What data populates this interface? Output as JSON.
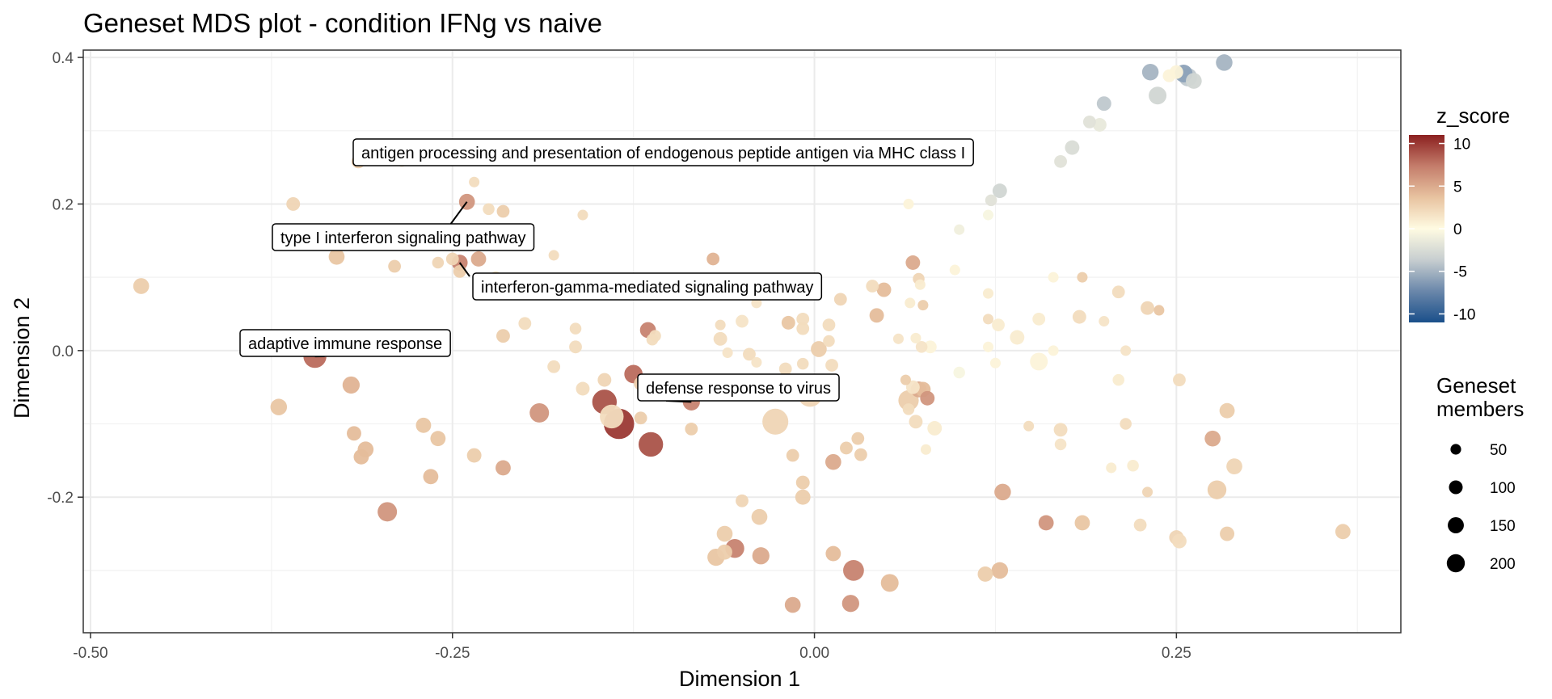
{
  "chart_data": {
    "type": "scatter",
    "title": "Geneset MDS plot - condition IFNg vs naive",
    "xlabel": "Dimension 1",
    "ylabel": "Dimension 2",
    "xlim": [
      -0.505,
      0.405
    ],
    "ylim": [
      -0.385,
      0.41
    ],
    "x_ticks": [
      -0.5,
      -0.25,
      0.0,
      0.25
    ],
    "x_tick_labels": [
      "-0.50",
      "-0.25",
      "0.00",
      "0.25"
    ],
    "y_ticks": [
      -0.2,
      0.0,
      0.2,
      0.4
    ],
    "y_tick_labels": [
      "-0.2",
      "0.0",
      "0.2",
      "0.4"
    ],
    "grid": true,
    "color_legend": {
      "title": "z_score",
      "ticks": [
        10,
        5,
        0,
        -5,
        -10
      ],
      "tick_labels": [
        "10",
        "5",
        "0",
        "-5",
        "-10"
      ],
      "range": [
        -11,
        11
      ],
      "colors": [
        "#1a4f8a",
        "#6a87aa",
        "#c7ced0",
        "#fffbe2",
        "#e8c3a0",
        "#c47d6b",
        "#8b2020"
      ]
    },
    "size_legend": {
      "title_lines": [
        "Geneset",
        "members"
      ],
      "values": [
        50,
        100,
        150,
        200
      ],
      "labels": [
        "50",
        "100",
        "150",
        "200"
      ]
    },
    "legend_position": "right",
    "points": [
      {
        "x": -0.465,
        "y": 0.088,
        "z": 3,
        "size": 40
      },
      {
        "x": -0.345,
        "y": -0.008,
        "z": 8,
        "size": 110
      },
      {
        "x": -0.37,
        "y": -0.077,
        "z": 3.5,
        "size": 45
      },
      {
        "x": -0.33,
        "y": 0.128,
        "z": 3.5,
        "size": 40
      },
      {
        "x": -0.36,
        "y": 0.2,
        "z": 2.5,
        "size": 25
      },
      {
        "x": -0.315,
        "y": 0.258,
        "z": 3,
        "size": 25
      },
      {
        "x": -0.285,
        "y": 0.258,
        "z": 2,
        "size": 10
      },
      {
        "x": -0.24,
        "y": 0.203,
        "z": 6,
        "size": 40
      },
      {
        "x": -0.235,
        "y": 0.23,
        "z": 2,
        "size": 10
      },
      {
        "x": -0.225,
        "y": 0.193,
        "z": 2,
        "size": 15
      },
      {
        "x": -0.215,
        "y": 0.19,
        "z": 3,
        "size": 20
      },
      {
        "x": -0.29,
        "y": 0.115,
        "z": 3,
        "size": 20
      },
      {
        "x": -0.26,
        "y": 0.12,
        "z": 2.5,
        "size": 15
      },
      {
        "x": -0.25,
        "y": 0.125,
        "z": 2.5,
        "size": 20
      },
      {
        "x": -0.245,
        "y": 0.12,
        "z": 7,
        "size": 40
      },
      {
        "x": -0.245,
        "y": 0.108,
        "z": 3,
        "size": 20
      },
      {
        "x": -0.232,
        "y": 0.125,
        "z": 5,
        "size": 35
      },
      {
        "x": -0.22,
        "y": 0.1,
        "z": 2,
        "size": 15
      },
      {
        "x": -0.2,
        "y": 0.088,
        "z": 2,
        "size": 10
      },
      {
        "x": -0.16,
        "y": 0.185,
        "z": 2,
        "size": 10
      },
      {
        "x": -0.18,
        "y": 0.13,
        "z": 2,
        "size": 10
      },
      {
        "x": -0.2,
        "y": 0.037,
        "z": 2,
        "size": 20
      },
      {
        "x": -0.215,
        "y": 0.02,
        "z": 3,
        "size": 25
      },
      {
        "x": -0.165,
        "y": 0.03,
        "z": 2,
        "size": 15
      },
      {
        "x": -0.165,
        "y": 0.005,
        "z": 2,
        "size": 20
      },
      {
        "x": -0.18,
        "y": -0.022,
        "z": 2,
        "size": 20
      },
      {
        "x": -0.16,
        "y": -0.052,
        "z": 2,
        "size": 25
      },
      {
        "x": -0.145,
        "y": -0.04,
        "z": 2.5,
        "size": 25
      },
      {
        "x": -0.125,
        "y": -0.032,
        "z": 8,
        "size": 60
      },
      {
        "x": -0.12,
        "y": -0.045,
        "z": 3,
        "size": 25
      },
      {
        "x": -0.145,
        "y": -0.07,
        "z": 9,
        "size": 130
      },
      {
        "x": -0.135,
        "y": -0.1,
        "z": 10,
        "size": 220
      },
      {
        "x": -0.14,
        "y": -0.09,
        "z": 2,
        "size": 120
      },
      {
        "x": -0.115,
        "y": 0.028,
        "z": 7,
        "size": 40
      },
      {
        "x": -0.11,
        "y": 0.02,
        "z": 2,
        "size": 15
      },
      {
        "x": -0.112,
        "y": 0.015,
        "z": 2,
        "size": 15
      },
      {
        "x": -0.12,
        "y": -0.092,
        "z": 3,
        "size": 20
      },
      {
        "x": -0.113,
        "y": -0.128,
        "z": 9,
        "size": 130
      },
      {
        "x": -0.085,
        "y": -0.07,
        "z": 7,
        "size": 50
      },
      {
        "x": -0.085,
        "y": -0.107,
        "z": 3,
        "size": 20
      },
      {
        "x": -0.19,
        "y": -0.085,
        "z": 6,
        "size": 70
      },
      {
        "x": -0.215,
        "y": -0.16,
        "z": 5,
        "size": 35
      },
      {
        "x": -0.235,
        "y": -0.143,
        "z": 3,
        "size": 30
      },
      {
        "x": -0.27,
        "y": -0.102,
        "z": 3.5,
        "size": 35
      },
      {
        "x": -0.26,
        "y": -0.12,
        "z": 3.5,
        "size": 35
      },
      {
        "x": -0.265,
        "y": -0.172,
        "z": 4,
        "size": 35
      },
      {
        "x": -0.32,
        "y": -0.047,
        "z": 4.5,
        "size": 50
      },
      {
        "x": -0.318,
        "y": -0.113,
        "z": 4,
        "size": 30
      },
      {
        "x": -0.31,
        "y": -0.135,
        "z": 4,
        "size": 40
      },
      {
        "x": -0.313,
        "y": -0.145,
        "z": 4,
        "size": 35
      },
      {
        "x": -0.295,
        "y": -0.22,
        "z": 6,
        "size": 70
      },
      {
        "x": -0.07,
        "y": 0.125,
        "z": 4.5,
        "size": 20
      },
      {
        "x": -0.07,
        "y": 0.08,
        "z": 3,
        "size": 35
      },
      {
        "x": -0.065,
        "y": 0.035,
        "z": 2,
        "size": 10
      },
      {
        "x": -0.05,
        "y": 0.04,
        "z": 1.5,
        "size": 20
      },
      {
        "x": -0.04,
        "y": 0.065,
        "z": 1.5,
        "size": 10
      },
      {
        "x": -0.065,
        "y": 0.016,
        "z": 2,
        "size": 25
      },
      {
        "x": -0.06,
        "y": -0.003,
        "z": 1.5,
        "size": 10
      },
      {
        "x": -0.045,
        "y": -0.005,
        "z": 2,
        "size": 20
      },
      {
        "x": -0.04,
        "y": -0.016,
        "z": 1.5,
        "size": 10
      },
      {
        "x": -0.035,
        "y": -0.045,
        "z": 2,
        "size": 20
      },
      {
        "x": -0.018,
        "y": 0.038,
        "z": 3.5,
        "size": 25
      },
      {
        "x": -0.008,
        "y": 0.043,
        "z": 2,
        "size": 20
      },
      {
        "x": -0.008,
        "y": 0.03,
        "z": 2,
        "size": 20
      },
      {
        "x": -0.008,
        "y": -0.018,
        "z": 2,
        "size": 15
      },
      {
        "x": -0.02,
        "y": -0.025,
        "z": 2,
        "size": 20
      },
      {
        "x": 0.003,
        "y": 0.002,
        "z": 3,
        "size": 40
      },
      {
        "x": -0.003,
        "y": -0.06,
        "z": 2.5,
        "size": 130
      },
      {
        "x": -0.027,
        "y": -0.097,
        "z": 2.5,
        "size": 150
      },
      {
        "x": 0.012,
        "y": -0.02,
        "z": 2,
        "size": 20
      },
      {
        "x": 0.018,
        "y": 0.07,
        "z": 2.5,
        "size": 20
      },
      {
        "x": 0.01,
        "y": 0.035,
        "z": 2,
        "size": 20
      },
      {
        "x": 0.01,
        "y": 0.013,
        "z": 2,
        "size": 15
      },
      {
        "x": 0.03,
        "y": -0.12,
        "z": 3,
        "size": 20
      },
      {
        "x": 0.022,
        "y": -0.133,
        "z": 3,
        "size": 20
      },
      {
        "x": 0.032,
        "y": -0.142,
        "z": 3,
        "size": 20
      },
      {
        "x": 0.013,
        "y": -0.152,
        "z": 5,
        "size": 40
      },
      {
        "x": -0.015,
        "y": -0.143,
        "z": 3,
        "size": 20
      },
      {
        "x": -0.008,
        "y": -0.18,
        "z": 3,
        "size": 25
      },
      {
        "x": -0.008,
        "y": -0.2,
        "z": 3,
        "size": 35
      },
      {
        "x": -0.038,
        "y": -0.227,
        "z": 3,
        "size": 40
      },
      {
        "x": -0.05,
        "y": -0.205,
        "z": 2.5,
        "size": 20
      },
      {
        "x": -0.062,
        "y": -0.25,
        "z": 3,
        "size": 40
      },
      {
        "x": -0.055,
        "y": -0.27,
        "z": 7,
        "size": 65
      },
      {
        "x": -0.062,
        "y": -0.275,
        "z": 3,
        "size": 35
      },
      {
        "x": -0.068,
        "y": -0.282,
        "z": 3.5,
        "size": 50
      },
      {
        "x": -0.037,
        "y": -0.28,
        "z": 5,
        "size": 50
      },
      {
        "x": -0.015,
        "y": -0.347,
        "z": 5,
        "size": 40
      },
      {
        "x": 0.013,
        "y": -0.277,
        "z": 4,
        "size": 35
      },
      {
        "x": 0.025,
        "y": -0.345,
        "z": 6,
        "size": 50
      },
      {
        "x": 0.027,
        "y": -0.3,
        "z": 7,
        "size": 85
      },
      {
        "x": 0.052,
        "y": -0.317,
        "z": 4,
        "size": 55
      },
      {
        "x": 0.04,
        "y": 0.088,
        "z": 2,
        "size": 20
      },
      {
        "x": 0.048,
        "y": 0.083,
        "z": 4,
        "size": 30
      },
      {
        "x": 0.043,
        "y": 0.048,
        "z": 4,
        "size": 30
      },
      {
        "x": 0.058,
        "y": 0.016,
        "z": 1.5,
        "size": 10
      },
      {
        "x": 0.066,
        "y": 0.065,
        "z": 1,
        "size": 10
      },
      {
        "x": 0.068,
        "y": 0.12,
        "z": 5,
        "size": 30
      },
      {
        "x": 0.072,
        "y": 0.098,
        "z": 2.5,
        "size": 15
      },
      {
        "x": 0.073,
        "y": 0.09,
        "z": 1,
        "size": 10
      },
      {
        "x": 0.075,
        "y": 0.062,
        "z": 3,
        "size": 10
      },
      {
        "x": 0.07,
        "y": 0.017,
        "z": 1,
        "size": 10
      },
      {
        "x": 0.074,
        "y": 0.005,
        "z": 1.5,
        "size": 15
      },
      {
        "x": 0.08,
        "y": 0.005,
        "z": 0.5,
        "size": 20
      },
      {
        "x": 0.063,
        "y": -0.04,
        "z": 3,
        "size": 10
      },
      {
        "x": 0.068,
        "y": -0.05,
        "z": 1.5,
        "size": 25
      },
      {
        "x": 0.072,
        "y": -0.053,
        "z": 5,
        "size": 40
      },
      {
        "x": 0.065,
        "y": -0.068,
        "z": 3,
        "size": 80
      },
      {
        "x": 0.075,
        "y": -0.053,
        "z": 4,
        "size": 35
      },
      {
        "x": 0.078,
        "y": -0.065,
        "z": 6,
        "size": 30
      },
      {
        "x": 0.065,
        "y": -0.08,
        "z": 2,
        "size": 15
      },
      {
        "x": 0.07,
        "y": -0.097,
        "z": 2,
        "size": 25
      },
      {
        "x": 0.083,
        "y": -0.106,
        "z": 1,
        "size": 30
      },
      {
        "x": 0.077,
        "y": -0.135,
        "z": 1,
        "size": 10
      },
      {
        "x": 0.065,
        "y": 0.2,
        "z": 0.5,
        "size": 10
      },
      {
        "x": 0.097,
        "y": 0.11,
        "z": 0.5,
        "size": 10
      },
      {
        "x": 0.1,
        "y": 0.165,
        "z": -1,
        "size": 10
      },
      {
        "x": 0.1,
        "y": -0.03,
        "z": -0.5,
        "size": 15
      },
      {
        "x": 0.12,
        "y": 0.185,
        "z": -0.5,
        "size": 10
      },
      {
        "x": 0.122,
        "y": 0.205,
        "z": -2,
        "size": 15
      },
      {
        "x": 0.128,
        "y": 0.218,
        "z": -3,
        "size": 30
      },
      {
        "x": 0.12,
        "y": 0.078,
        "z": 1,
        "size": 10
      },
      {
        "x": 0.12,
        "y": 0.043,
        "z": 2,
        "size": 10
      },
      {
        "x": 0.127,
        "y": 0.035,
        "z": 1,
        "size": 20
      },
      {
        "x": 0.12,
        "y": 0.005,
        "z": 0.5,
        "size": 10
      },
      {
        "x": 0.125,
        "y": -0.017,
        "z": 0.5,
        "size": 10
      },
      {
        "x": 0.14,
        "y": 0.018,
        "z": 1,
        "size": 30
      },
      {
        "x": 0.155,
        "y": 0.043,
        "z": 1,
        "size": 20
      },
      {
        "x": 0.155,
        "y": -0.015,
        "z": 0.5,
        "size": 55
      },
      {
        "x": 0.165,
        "y": 0.0,
        "z": 0.5,
        "size": 10
      },
      {
        "x": 0.148,
        "y": -0.103,
        "z": 2,
        "size": 10
      },
      {
        "x": 0.17,
        "y": -0.108,
        "z": 2,
        "size": 25
      },
      {
        "x": 0.17,
        "y": -0.128,
        "z": 1.5,
        "size": 15
      },
      {
        "x": 0.165,
        "y": 0.1,
        "z": 0.5,
        "size": 10
      },
      {
        "x": 0.185,
        "y": 0.1,
        "z": 3,
        "size": 10
      },
      {
        "x": 0.183,
        "y": 0.046,
        "z": 2,
        "size": 25
      },
      {
        "x": 0.2,
        "y": 0.04,
        "z": 1.5,
        "size": 10
      },
      {
        "x": 0.21,
        "y": 0.08,
        "z": 2,
        "size": 20
      },
      {
        "x": 0.215,
        "y": 0.0,
        "z": 1.5,
        "size": 10
      },
      {
        "x": 0.21,
        "y": -0.04,
        "z": 1,
        "size": 15
      },
      {
        "x": 0.215,
        "y": -0.1,
        "z": 2,
        "size": 15
      },
      {
        "x": 0.22,
        "y": -0.157,
        "z": 1,
        "size": 15
      },
      {
        "x": 0.205,
        "y": -0.16,
        "z": 1,
        "size": 10
      },
      {
        "x": 0.23,
        "y": 0.058,
        "z": 2.5,
        "size": 25
      },
      {
        "x": 0.238,
        "y": 0.055,
        "z": 3.5,
        "size": 10
      },
      {
        "x": 0.23,
        "y": -0.193,
        "z": 2.5,
        "size": 10
      },
      {
        "x": 0.225,
        "y": -0.238,
        "z": 2,
        "size": 20
      },
      {
        "x": 0.252,
        "y": -0.04,
        "z": 2,
        "size": 20
      },
      {
        "x": 0.25,
        "y": -0.255,
        "z": 2.5,
        "size": 30
      },
      {
        "x": 0.252,
        "y": -0.26,
        "z": 2,
        "size": 30
      },
      {
        "x": 0.275,
        "y": -0.12,
        "z": 5,
        "size": 40
      },
      {
        "x": 0.278,
        "y": -0.19,
        "z": 3,
        "size": 65
      },
      {
        "x": 0.285,
        "y": -0.082,
        "z": 3,
        "size": 35
      },
      {
        "x": 0.29,
        "y": -0.158,
        "z": 2.5,
        "size": 40
      },
      {
        "x": 0.285,
        "y": -0.25,
        "z": 3,
        "size": 30
      },
      {
        "x": 0.365,
        "y": -0.247,
        "z": 3,
        "size": 35
      },
      {
        "x": 0.185,
        "y": -0.235,
        "z": 3.5,
        "size": 35
      },
      {
        "x": 0.16,
        "y": -0.235,
        "z": 6,
        "size": 35
      },
      {
        "x": 0.13,
        "y": -0.193,
        "z": 5,
        "size": 45
      },
      {
        "x": 0.128,
        "y": -0.3,
        "z": 4,
        "size": 45
      },
      {
        "x": 0.118,
        "y": -0.305,
        "z": 3,
        "size": 35
      },
      {
        "x": 0.17,
        "y": 0.258,
        "z": -2,
        "size": 20
      },
      {
        "x": 0.178,
        "y": 0.277,
        "z": -2.5,
        "size": 30
      },
      {
        "x": 0.19,
        "y": 0.312,
        "z": -2,
        "size": 20
      },
      {
        "x": 0.197,
        "y": 0.308,
        "z": -1.5,
        "size": 25
      },
      {
        "x": 0.2,
        "y": 0.337,
        "z": -4,
        "size": 30
      },
      {
        "x": 0.232,
        "y": 0.38,
        "z": -5,
        "size": 45
      },
      {
        "x": 0.237,
        "y": 0.348,
        "z": -3,
        "size": 55
      },
      {
        "x": 0.245,
        "y": 0.375,
        "z": 0.5,
        "size": 20
      },
      {
        "x": 0.25,
        "y": 0.38,
        "z": 0.5,
        "size": 25
      },
      {
        "x": 0.255,
        "y": 0.378,
        "z": -6,
        "size": 55
      },
      {
        "x": 0.258,
        "y": 0.373,
        "z": -4,
        "size": 60
      },
      {
        "x": 0.262,
        "y": 0.368,
        "z": -3,
        "size": 40
      },
      {
        "x": 0.283,
        "y": 0.393,
        "z": -5,
        "size": 45
      }
    ],
    "annotations": [
      {
        "text": "antigen processing and presentation of endogenous peptide antigen via MHC class I"
      },
      {
        "text": "type I interferon signaling pathway"
      },
      {
        "text": "interferon-gamma-mediated signaling pathway"
      },
      {
        "text": "adaptive immune response"
      },
      {
        "text": "defense response to virus"
      }
    ]
  }
}
